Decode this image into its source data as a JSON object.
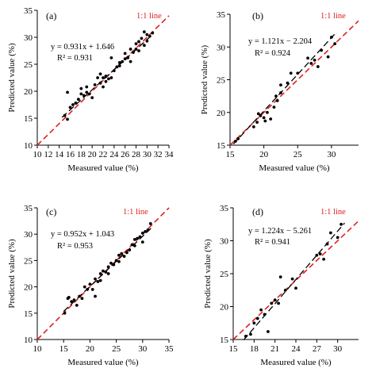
{
  "chart_data": [
    {
      "type": "scatter",
      "panel_label": "(a)",
      "xlabel": "Measured value (%)",
      "ylabel": "Predicted value (%)",
      "xlim": [
        10,
        34
      ],
      "ylim": [
        10,
        35
      ],
      "xticks": [
        10,
        12,
        14,
        16,
        18,
        20,
        22,
        24,
        26,
        28,
        30,
        32,
        34
      ],
      "yticks": [
        10,
        15,
        20,
        25,
        30,
        35
      ],
      "equation": "y = 0.931x + 1.646",
      "r2": "R² = 0.931",
      "reference_line_label": "1:1 line",
      "fit": {
        "slope": 0.931,
        "intercept": 1.646,
        "x_range": [
          14.5,
          31
        ]
      },
      "points": [
        [
          15,
          15.5
        ],
        [
          15.5,
          14.8
        ],
        [
          15.5,
          19.8
        ],
        [
          16,
          17
        ],
        [
          16.5,
          17.5
        ],
        [
          17,
          17.8
        ],
        [
          17.5,
          18.5
        ],
        [
          18,
          19.5
        ],
        [
          18,
          20.5
        ],
        [
          18.5,
          19.2
        ],
        [
          19,
          19.8
        ],
        [
          19,
          20.8
        ],
        [
          19.5,
          19.5
        ],
        [
          20,
          18.8
        ],
        [
          20.5,
          21.2
        ],
        [
          21,
          22.5
        ],
        [
          21.5,
          21.5
        ],
        [
          21.5,
          23.2
        ],
        [
          22,
          20.8
        ],
        [
          22,
          22.5
        ],
        [
          22.5,
          22.8
        ],
        [
          22.5,
          21.8
        ],
        [
          23,
          22.3
        ],
        [
          23.5,
          22.5
        ],
        [
          23.5,
          26.2
        ],
        [
          24,
          23.8
        ],
        [
          24.5,
          24.5
        ],
        [
          25,
          25.3
        ],
        [
          25,
          24.7
        ],
        [
          25.5,
          25.5
        ],
        [
          26,
          26
        ],
        [
          26,
          27
        ],
        [
          26.5,
          26.2
        ],
        [
          27,
          25.5
        ],
        [
          27,
          27.8
        ],
        [
          27.5,
          27.2
        ],
        [
          28,
          27.8
        ],
        [
          28,
          28.8
        ],
        [
          28.5,
          29.2
        ],
        [
          28.5,
          27.5
        ],
        [
          29,
          29.8
        ],
        [
          29.5,
          28.5
        ],
        [
          29.5,
          31
        ],
        [
          30,
          30.5
        ],
        [
          30,
          29.3
        ],
        [
          30.5,
          30.2
        ],
        [
          31,
          30.8
        ]
      ]
    },
    {
      "type": "scatter",
      "panel_label": "(b)",
      "xlabel": "Measured value (%)",
      "ylabel": "Predicted value (%)",
      "xlim": [
        15,
        34
      ],
      "ylim": [
        15,
        35
      ],
      "xticks": [
        15,
        20,
        25,
        30
      ],
      "yticks": [
        15,
        20,
        25,
        30,
        35
      ],
      "equation": "y = 1.121x − 2.204",
      "r2": "R² = 0.924",
      "reference_line_label": "1:1 line",
      "fit": {
        "slope": 1.121,
        "intercept": -2.204,
        "x_range": [
          15.5,
          30.5
        ]
      },
      "points": [
        [
          15.8,
          15.6
        ],
        [
          16.2,
          16
        ],
        [
          18.5,
          17.8
        ],
        [
          19,
          18.5
        ],
        [
          19.2,
          19.8
        ],
        [
          19.5,
          19.5
        ],
        [
          20,
          19.2
        ],
        [
          20.2,
          18.7
        ],
        [
          20.5,
          20
        ],
        [
          21,
          19
        ],
        [
          21.5,
          20.8
        ],
        [
          21.8,
          22.5
        ],
        [
          22,
          21.8
        ],
        [
          22.5,
          23
        ],
        [
          22.5,
          24.2
        ],
        [
          23.5,
          24.5
        ],
        [
          24,
          26
        ],
        [
          25,
          26
        ],
        [
          26.5,
          28.3
        ],
        [
          27,
          27.5
        ],
        [
          27.5,
          28
        ],
        [
          28,
          27
        ],
        [
          28.5,
          29.5
        ],
        [
          29.5,
          28.5
        ],
        [
          30,
          31.5
        ],
        [
          30.5,
          30.5
        ]
      ]
    },
    {
      "type": "scatter",
      "panel_label": "(c)",
      "xlabel": "Measured value (%)",
      "ylabel": "Predicted value (%)",
      "xlim": [
        10,
        35
      ],
      "ylim": [
        10,
        35
      ],
      "xticks": [
        10,
        15,
        20,
        25,
        30,
        35
      ],
      "yticks": [
        10,
        15,
        20,
        25,
        30,
        35
      ],
      "equation": "y = 0.952x + 1.043",
      "r2": "R² = 0.953",
      "reference_line_label": "1:1 line",
      "fit": {
        "slope": 0.952,
        "intercept": 1.043,
        "x_range": [
          15,
          32
        ]
      },
      "points": [
        [
          15.2,
          15
        ],
        [
          15.8,
          17.8
        ],
        [
          16,
          18
        ],
        [
          16.5,
          17.2
        ],
        [
          17,
          17.5
        ],
        [
          17.5,
          16.5
        ],
        [
          18,
          18.2
        ],
        [
          18.5,
          17.8
        ],
        [
          19,
          20
        ],
        [
          19.5,
          19.5
        ],
        [
          20,
          20.5
        ],
        [
          20.5,
          19.5
        ],
        [
          21,
          18.2
        ],
        [
          21,
          21.5
        ],
        [
          21.5,
          21
        ],
        [
          22,
          22.5
        ],
        [
          22,
          21.2
        ],
        [
          22.5,
          23
        ],
        [
          23,
          22.8
        ],
        [
          23.5,
          23.8
        ],
        [
          23.5,
          22.5
        ],
        [
          24,
          24.5
        ],
        [
          24.5,
          24.2
        ],
        [
          25,
          25
        ],
        [
          25.5,
          26
        ],
        [
          25.5,
          24.8
        ],
        [
          26,
          26.3
        ],
        [
          26.5,
          25.8
        ],
        [
          27,
          26.5
        ],
        [
          27.5,
          27
        ],
        [
          28,
          28
        ],
        [
          28.5,
          29
        ],
        [
          28.5,
          27.8
        ],
        [
          29,
          29.2
        ],
        [
          29.5,
          29.5
        ],
        [
          30,
          30.2
        ],
        [
          30,
          28.5
        ],
        [
          30.5,
          30.5
        ],
        [
          31,
          30.8
        ],
        [
          31.5,
          32
        ]
      ]
    },
    {
      "type": "scatter",
      "panel_label": "(d)",
      "xlabel": "Measured value (%)",
      "ylabel": "Predicted value (%)",
      "xlim": [
        15,
        33
      ],
      "ylim": [
        15,
        35
      ],
      "xticks": [
        15,
        18,
        21,
        24,
        27,
        30
      ],
      "yticks": [
        15,
        20,
        25,
        30,
        35
      ],
      "equation": "y = 1.224x − 5.261",
      "r2": "R² = 0.941",
      "reference_line_label": "1:1 line",
      "fit": {
        "slope": 1.224,
        "intercept": -5.261,
        "x_range": [
          16.5,
          31
        ]
      },
      "points": [
        [
          16.8,
          15.5
        ],
        [
          17.5,
          15.8
        ],
        [
          18,
          17.5
        ],
        [
          18.5,
          18.2
        ],
        [
          19,
          19.5
        ],
        [
          19.5,
          18.8
        ],
        [
          20,
          16.2
        ],
        [
          20.5,
          20.5
        ],
        [
          21,
          21
        ],
        [
          21.5,
          20.5
        ],
        [
          21.8,
          24.5
        ],
        [
          22.5,
          22.5
        ],
        [
          23.5,
          24.2
        ],
        [
          24,
          22.8
        ],
        [
          27,
          27.8
        ],
        [
          27.5,
          28
        ],
        [
          28,
          27.2
        ],
        [
          28.5,
          29.5
        ],
        [
          29,
          31.2
        ],
        [
          30,
          30.5
        ],
        [
          30.5,
          32.5
        ]
      ]
    }
  ],
  "colors": {
    "reference_line": "#e02020",
    "fit_line": "#000000",
    "points": "#000000"
  }
}
